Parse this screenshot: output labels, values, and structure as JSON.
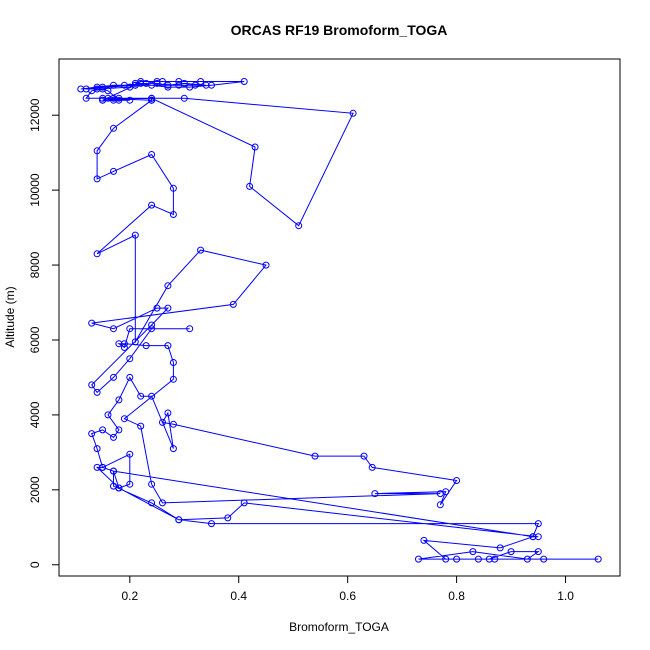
{
  "chart_data": {
    "type": "line",
    "title": "ORCAS RF19 Bromoform_TOGA",
    "xlabel": "Bromoform_TOGA",
    "ylabel": "Altitude (m)",
    "xlim": [
      0.07,
      1.1
    ],
    "ylim": [
      -300,
      13500
    ],
    "xticks": [
      0.2,
      0.4,
      0.6,
      0.8,
      1.0
    ],
    "xtick_labels": [
      "0.2",
      "0.4",
      "0.6",
      "0.8",
      "1.0"
    ],
    "yticks": [
      0,
      2000,
      4000,
      6000,
      8000,
      10000,
      12000
    ],
    "ytick_labels": [
      "0",
      "2000",
      "4000",
      "6000",
      "8000",
      "10000",
      "12000"
    ],
    "grid": false,
    "line_color": "#0000ff",
    "marker": "open-circle",
    "series": [
      {
        "x": [
          1.06,
          0.96,
          0.87,
          0.84,
          0.8,
          0.73,
          0.83,
          0.93,
          0.95,
          0.9,
          0.86,
          0.78,
          0.74,
          0.88,
          0.94,
          0.95,
          0.35,
          0.29,
          0.24,
          0.17,
          0.17,
          0.15,
          0.14,
          0.18,
          0.29,
          0.38,
          0.41,
          0.95,
          0.94,
          0.17,
          0.18,
          0.2,
          0.2,
          0.15,
          0.14,
          0.13,
          0.15,
          0.17,
          0.18,
          0.16,
          0.18,
          0.2,
          0.22,
          0.24,
          0.28,
          0.27,
          0.26,
          0.28,
          0.54,
          0.63,
          0.645,
          0.8,
          0.77,
          0.78,
          0.65,
          0.77,
          0.26,
          0.24,
          0.22,
          0.19,
          0.28,
          0.28,
          0.27,
          0.23,
          0.19,
          0.18,
          0.19,
          0.2,
          0.31,
          0.24,
          0.2,
          0.17,
          0.14,
          0.13,
          0.24,
          0.27,
          0.25,
          0.17,
          0.13,
          0.39,
          0.45,
          0.33,
          0.27,
          0.21,
          0.21,
          0.14,
          0.24,
          0.28,
          0.28,
          0.24,
          0.17,
          0.14,
          0.14,
          0.17,
          0.24,
          0.24,
          0.43,
          0.42,
          0.51,
          0.61,
          0.3,
          0.17,
          0.15,
          0.24,
          0.24,
          0.16,
          0.12,
          0.13,
          0.15,
          0.16,
          0.18,
          0.2,
          0.17,
          0.15,
          0.18,
          0.24,
          0.15,
          0.21,
          0.11,
          0.14,
          0.17,
          0.21,
          0.29,
          0.32,
          0.34,
          0.3,
          0.27,
          0.25,
          0.23,
          0.19,
          0.15,
          0.12,
          0.14,
          0.2,
          0.22,
          0.25,
          0.26,
          0.29,
          0.33,
          0.41,
          0.35,
          0.31,
          0.27,
          0.24,
          0.22,
          0.21
        ],
        "y": [
          150,
          150,
          150,
          150,
          150,
          150,
          350,
          150,
          350,
          350,
          150,
          150,
          650,
          450,
          750,
          1100,
          1100,
          1200,
          1650,
          2100,
          2500,
          2600,
          2600,
          2050,
          1200,
          1250,
          1650,
          750,
          750,
          2500,
          2050,
          2150,
          2950,
          2600,
          3100,
          3500,
          3600,
          3400,
          3600,
          4000,
          4400,
          5000,
          4500,
          4500,
          3100,
          4050,
          3800,
          3750,
          2900,
          2900,
          2600,
          2250,
          1600,
          1950,
          1900,
          1900,
          1650,
          2150,
          3700,
          3900,
          4950,
          5400,
          5850,
          5850,
          5900,
          5900,
          5800,
          6300,
          6300,
          6300,
          5500,
          5000,
          4600,
          4800,
          6400,
          6850,
          6850,
          6300,
          6450,
          6950,
          8000,
          8400,
          7450,
          5950,
          8800,
          8300,
          9600,
          9350,
          10050,
          10950,
          10500,
          10300,
          11050,
          11650,
          12400,
          12450,
          11150,
          10100,
          9050,
          12050,
          12450,
          12450,
          12450,
          12400,
          12400,
          12450,
          12450,
          12650,
          12700,
          12650,
          12400,
          12400,
          12400,
          12400,
          12450,
          12450,
          12400,
          12800,
          12700,
          12750,
          12800,
          12800,
          12800,
          12800,
          12800,
          12850,
          12800,
          12850,
          12850,
          12800,
          12750,
          12700,
          12700,
          12750,
          12900,
          12900,
          12900,
          12900,
          12900,
          12900,
          12800,
          12750,
          12750,
          12800,
          12850,
          12850
        ]
      }
    ]
  }
}
